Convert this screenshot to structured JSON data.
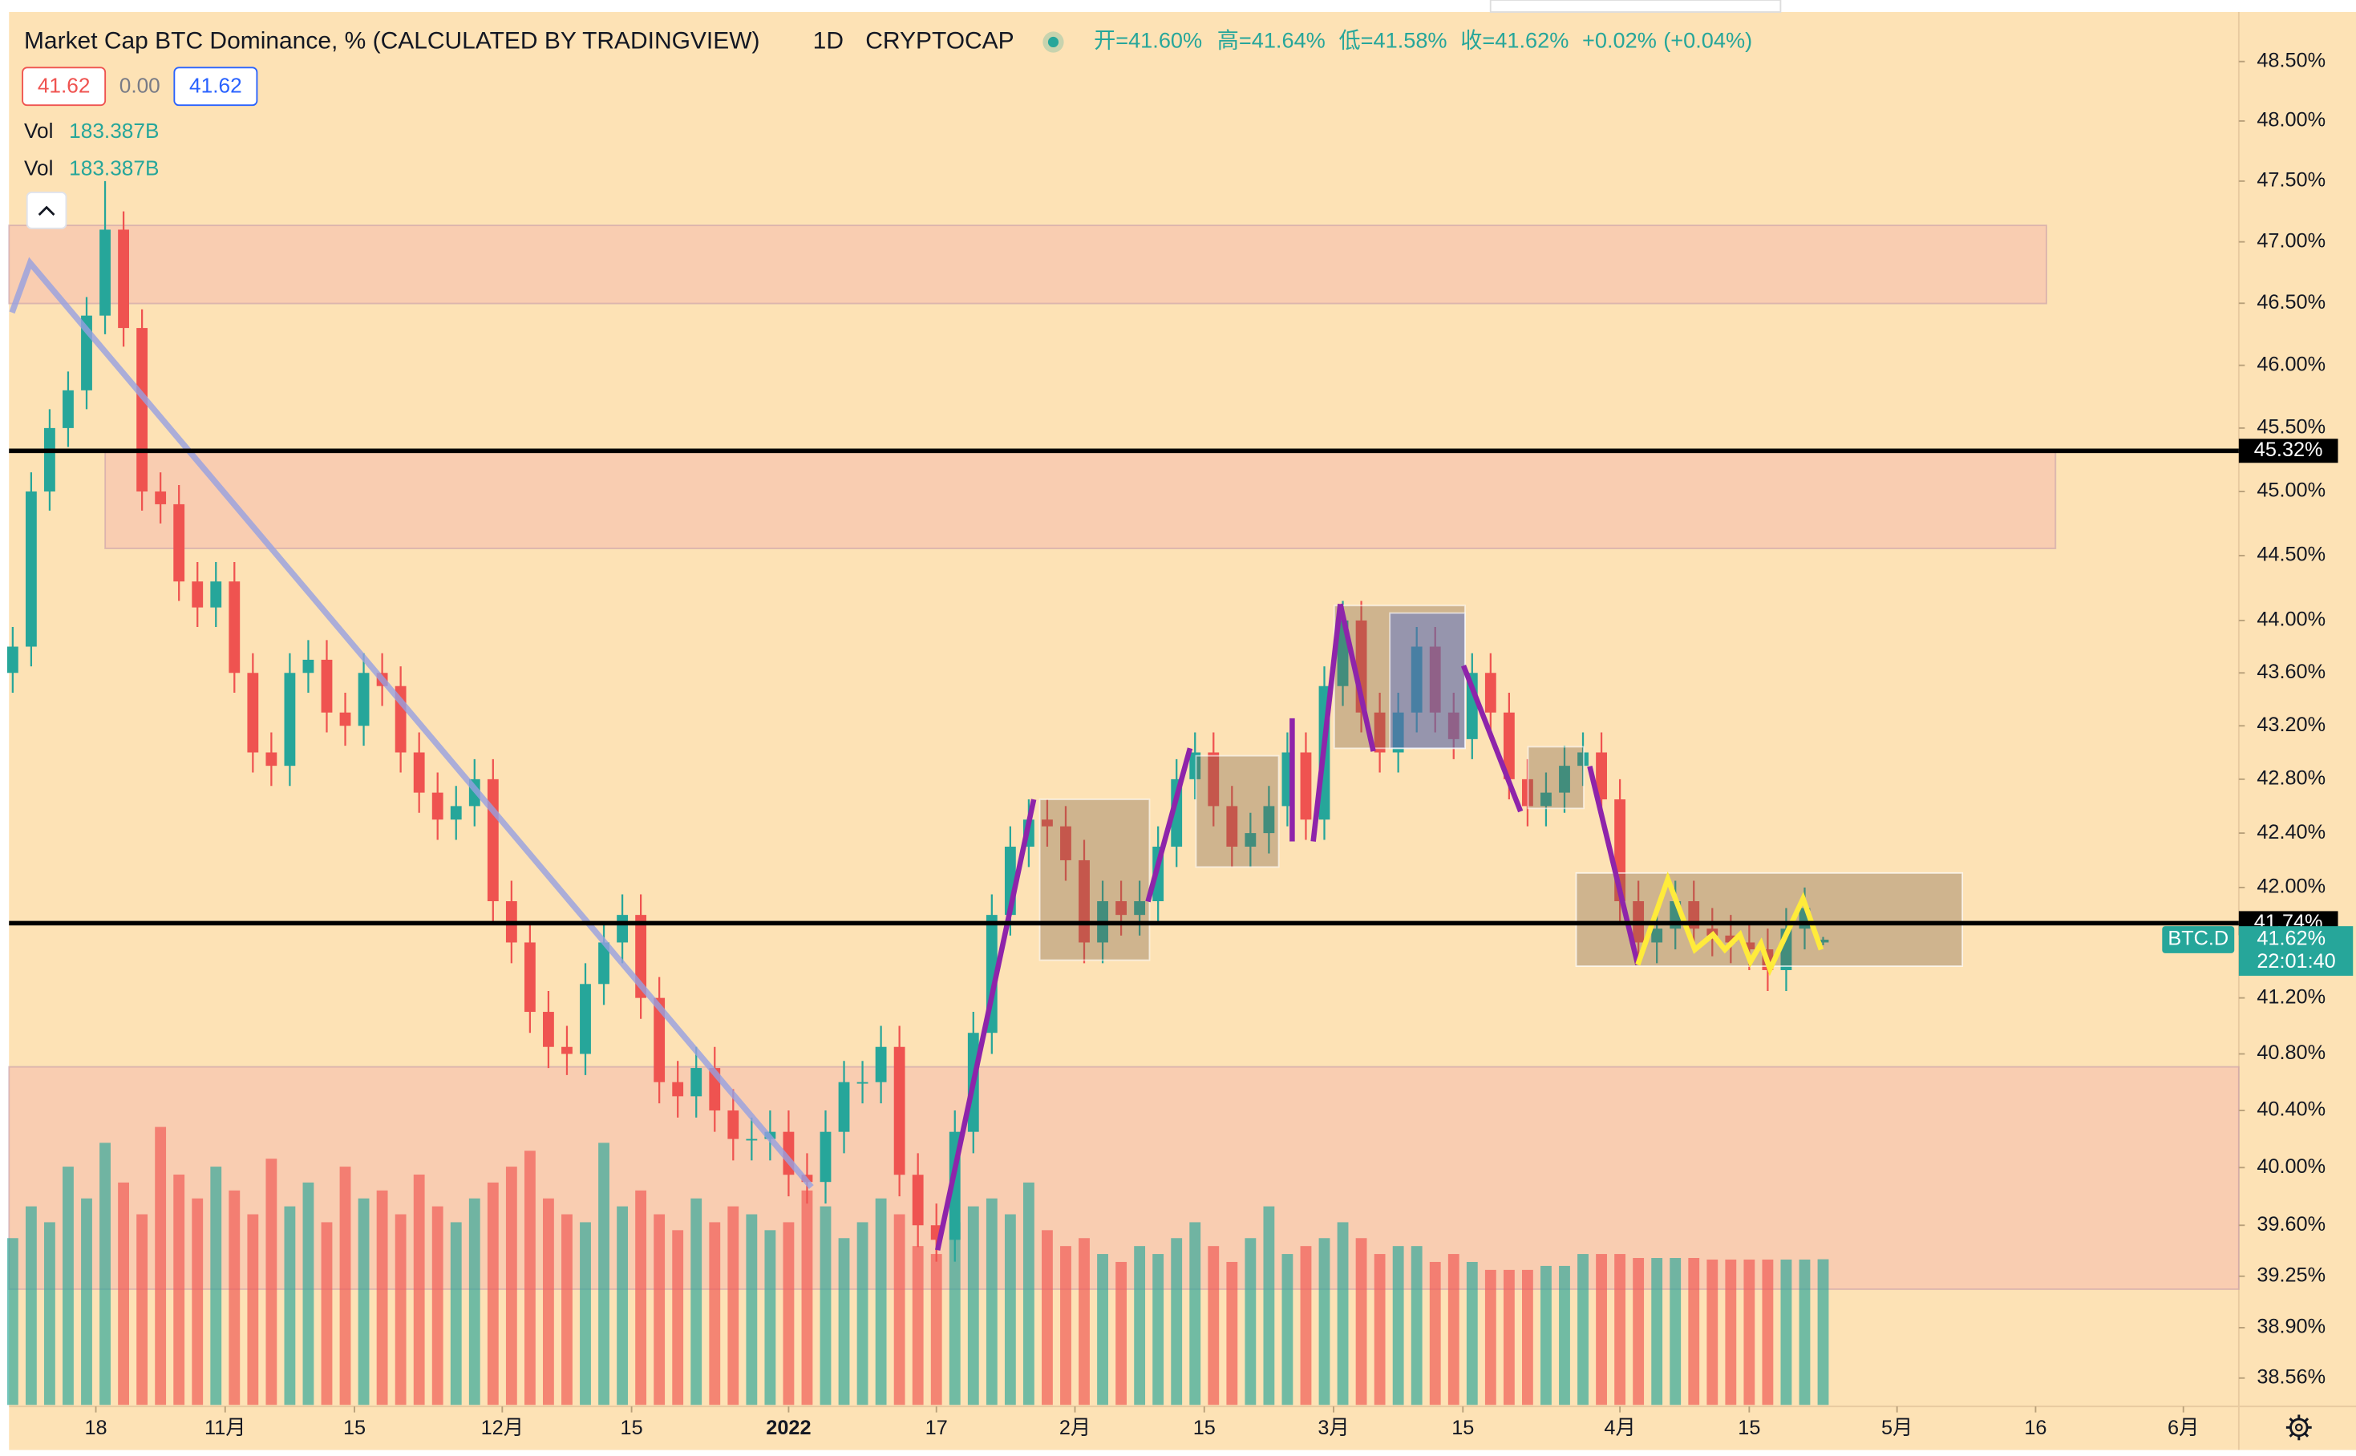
{
  "chart_data": {
    "type": "candlestick",
    "title": "Market Cap BTC Dominance, % (CALCULATED BY TRADINGVIEW)",
    "interval": "1D",
    "exchange": "CRYPTOCAP",
    "ohlc_legend": [
      "开=41.60%",
      "高=41.64%",
      "低=41.58%",
      "收=41.62%",
      "+0.02%",
      "(+0.04%)"
    ],
    "price_boxes": [
      "41.62",
      "0.00",
      "41.62"
    ],
    "volume_legends": [
      {
        "name": "Vol",
        "value": "183.387B"
      },
      {
        "name": "Vol",
        "value": "183.387B"
      }
    ],
    "open": [
      43.6,
      43.8,
      45.0,
      45.5,
      45.8,
      46.4,
      47.1,
      46.3,
      45.0,
      44.9,
      44.3,
      44.1,
      44.3,
      43.6,
      43.0,
      42.9,
      43.6,
      43.7,
      43.3,
      43.2,
      43.6,
      43.5,
      43.0,
      42.7,
      42.5,
      42.6,
      42.8,
      41.9,
      41.6,
      41.1,
      40.85,
      40.8,
      41.3,
      41.6,
      41.8,
      41.2,
      40.6,
      40.5,
      40.7,
      40.4,
      40.2,
      40.2,
      40.25,
      39.95,
      39.9,
      40.25,
      40.6,
      40.6,
      40.85,
      39.95,
      39.6,
      39.5,
      40.25,
      40.95,
      41.8,
      42.3,
      42.5,
      42.45,
      42.2,
      41.6,
      41.9,
      41.8,
      41.9,
      42.3,
      42.8,
      43.0,
      42.6,
      42.3,
      42.4,
      42.6,
      43.0,
      42.5,
      43.5,
      44.0,
      43.3,
      43.0,
      43.3,
      43.8,
      43.3,
      43.1,
      43.6,
      43.3,
      42.8,
      42.6,
      42.7,
      42.9,
      43.0,
      42.65,
      41.9,
      41.6,
      41.7,
      41.9,
      41.7,
      41.65,
      41.6,
      41.55,
      41.4,
      41.7,
      41.6
    ],
    "high": [
      43.95,
      45.15,
      45.65,
      45.95,
      46.55,
      47.5,
      47.25,
      46.45,
      45.15,
      45.05,
      44.45,
      44.45,
      44.45,
      43.75,
      43.15,
      43.75,
      43.85,
      43.85,
      43.45,
      43.75,
      43.75,
      43.65,
      43.15,
      42.85,
      42.75,
      42.95,
      42.95,
      42.05,
      41.75,
      41.25,
      41.0,
      41.45,
      41.75,
      41.95,
      41.95,
      41.35,
      40.75,
      40.85,
      40.85,
      40.55,
      40.35,
      40.4,
      40.4,
      40.1,
      40.4,
      40.75,
      40.75,
      41.0,
      41.0,
      40.1,
      39.75,
      40.4,
      41.1,
      41.95,
      42.45,
      42.65,
      42.65,
      42.6,
      42.35,
      42.05,
      42.05,
      42.05,
      42.45,
      42.95,
      43.15,
      43.15,
      42.75,
      42.55,
      42.75,
      43.15,
      43.15,
      43.65,
      44.15,
      44.15,
      43.45,
      43.45,
      43.95,
      43.95,
      43.45,
      43.75,
      43.75,
      43.45,
      42.95,
      42.85,
      43.05,
      43.15,
      43.15,
      42.8,
      42.05,
      41.85,
      42.05,
      42.05,
      41.85,
      41.8,
      41.75,
      41.7,
      41.85,
      42.0,
      41.64
    ],
    "low": [
      43.45,
      43.65,
      44.85,
      45.35,
      45.65,
      46.25,
      46.15,
      44.85,
      44.75,
      44.15,
      43.95,
      43.95,
      43.45,
      42.85,
      42.75,
      42.75,
      43.45,
      43.15,
      43.05,
      43.05,
      43.35,
      42.85,
      42.55,
      42.35,
      42.35,
      42.45,
      41.75,
      41.45,
      40.95,
      40.7,
      40.65,
      40.65,
      41.15,
      41.45,
      41.05,
      40.45,
      40.35,
      40.35,
      40.25,
      40.05,
      40.05,
      40.05,
      39.8,
      39.75,
      39.75,
      40.1,
      40.45,
      40.45,
      39.8,
      39.45,
      39.35,
      39.35,
      40.1,
      40.8,
      41.65,
      42.15,
      42.3,
      42.05,
      41.45,
      41.45,
      41.65,
      41.65,
      41.75,
      42.15,
      42.65,
      42.45,
      42.15,
      42.15,
      42.25,
      42.45,
      42.35,
      42.35,
      43.35,
      43.15,
      42.85,
      42.85,
      43.15,
      43.15,
      42.95,
      42.95,
      43.15,
      42.65,
      42.45,
      42.45,
      42.55,
      42.75,
      42.5,
      41.75,
      41.45,
      41.45,
      41.55,
      41.55,
      41.5,
      41.45,
      41.4,
      41.25,
      41.25,
      41.55,
      41.58
    ],
    "close": [
      43.8,
      45.0,
      45.5,
      45.8,
      46.4,
      47.1,
      46.3,
      45.0,
      44.9,
      44.3,
      44.1,
      44.3,
      43.6,
      43.0,
      42.9,
      43.6,
      43.7,
      43.3,
      43.2,
      43.6,
      43.5,
      43.0,
      42.7,
      42.5,
      42.6,
      42.8,
      41.9,
      41.6,
      41.1,
      40.85,
      40.8,
      41.3,
      41.6,
      41.8,
      41.2,
      40.6,
      40.5,
      40.7,
      40.4,
      40.2,
      40.2,
      40.25,
      39.95,
      39.9,
      40.25,
      40.6,
      40.6,
      40.85,
      39.95,
      39.6,
      39.5,
      40.25,
      40.95,
      41.8,
      42.3,
      42.5,
      42.45,
      42.2,
      41.6,
      41.9,
      41.8,
      41.9,
      42.3,
      42.8,
      43.0,
      42.6,
      42.3,
      42.4,
      42.6,
      43.0,
      42.5,
      43.5,
      44.0,
      43.3,
      43.0,
      43.3,
      43.8,
      43.3,
      43.1,
      43.6,
      43.3,
      42.8,
      42.6,
      42.7,
      42.9,
      43.0,
      42.65,
      41.9,
      41.6,
      41.7,
      41.9,
      41.7,
      41.65,
      41.6,
      41.55,
      41.4,
      41.7,
      41.85,
      41.62
    ],
    "volume": [
      210,
      250,
      230,
      300,
      260,
      330,
      280,
      240,
      350,
      290,
      260,
      300,
      270,
      240,
      310,
      250,
      280,
      230,
      300,
      260,
      270,
      240,
      290,
      250,
      230,
      260,
      280,
      300,
      320,
      260,
      240,
      230,
      330,
      250,
      270,
      240,
      220,
      260,
      230,
      250,
      240,
      220,
      230,
      270,
      250,
      210,
      230,
      260,
      240,
      200,
      190,
      230,
      250,
      260,
      240,
      280,
      220,
      200,
      210,
      190,
      180,
      200,
      190,
      210,
      230,
      200,
      180,
      210,
      250,
      190,
      200,
      210,
      230,
      210,
      190,
      200,
      200,
      180,
      190,
      180,
      170,
      170,
      170,
      175,
      175,
      190,
      190,
      190,
      185,
      185,
      185,
      185,
      183,
      183,
      183,
      183,
      183,
      183,
      183.387
    ],
    "up_color": "#26a69a",
    "down_color": "#ef5350",
    "xlim": [
      -0.2,
      120.5
    ],
    "xticks": [
      {
        "value": 4.5,
        "label": "18"
      },
      {
        "value": 11.5,
        "label": "11月"
      },
      {
        "value": 18.5,
        "label": "15"
      },
      {
        "value": 26.5,
        "label": "12月"
      },
      {
        "value": 33.5,
        "label": "15"
      },
      {
        "value": 42,
        "label": "2022"
      },
      {
        "value": 50,
        "label": "17"
      },
      {
        "value": 57.5,
        "label": "2月"
      },
      {
        "value": 64.5,
        "label": "15"
      },
      {
        "value": 71.5,
        "label": "3月"
      },
      {
        "value": 78.5,
        "label": "15"
      },
      {
        "value": 87,
        "label": "4月"
      },
      {
        "value": 94,
        "label": "15"
      },
      {
        "value": 102,
        "label": "5月"
      },
      {
        "value": 109.5,
        "label": "16"
      },
      {
        "value": 117.5,
        "label": "6月"
      }
    ],
    "ylim": [
      38.38,
      48.92
    ],
    "log_scale": true,
    "yticks": [
      {
        "value": 48.5,
        "label": "48.50%"
      },
      {
        "value": 48,
        "label": "48.00%"
      },
      {
        "value": 47.5,
        "label": "47.50%"
      },
      {
        "value": 47,
        "label": "47.00%"
      },
      {
        "value": 46.5,
        "label": "46.50%"
      },
      {
        "value": 46,
        "label": "46.00%"
      },
      {
        "value": 45.5,
        "label": "45.50%"
      },
      {
        "value": 45,
        "label": "45.00%"
      },
      {
        "value": 44.5,
        "label": "44.50%"
      },
      {
        "value": 44,
        "label": "44.00%"
      },
      {
        "value": 43.6,
        "label": "43.60%"
      },
      {
        "value": 43.2,
        "label": "43.20%"
      },
      {
        "value": 42.8,
        "label": "42.80%"
      },
      {
        "value": 42.4,
        "label": "42.40%"
      },
      {
        "value": 42,
        "label": "42.00%"
      },
      {
        "value": 41.2,
        "label": "41.20%"
      },
      {
        "value": 40.8,
        "label": "40.80%"
      },
      {
        "value": 40.4,
        "label": "40.40%"
      },
      {
        "value": 40,
        "label": "40.00%"
      },
      {
        "value": 39.6,
        "label": "39.60%"
      },
      {
        "value": 39.25,
        "label": "39.25%"
      },
      {
        "value": 38.9,
        "label": "38.90%"
      },
      {
        "value": 38.56,
        "label": "38.56%"
      }
    ],
    "grid": false,
    "hlines": [
      {
        "value": 45.32,
        "label": "45.32%"
      },
      {
        "value": 41.74,
        "label": "41.74%"
      }
    ],
    "last_price": {
      "value": 41.62,
      "label": "41.62%",
      "countdown": "22:01:40",
      "symbol": "BTC.D"
    }
  }
}
